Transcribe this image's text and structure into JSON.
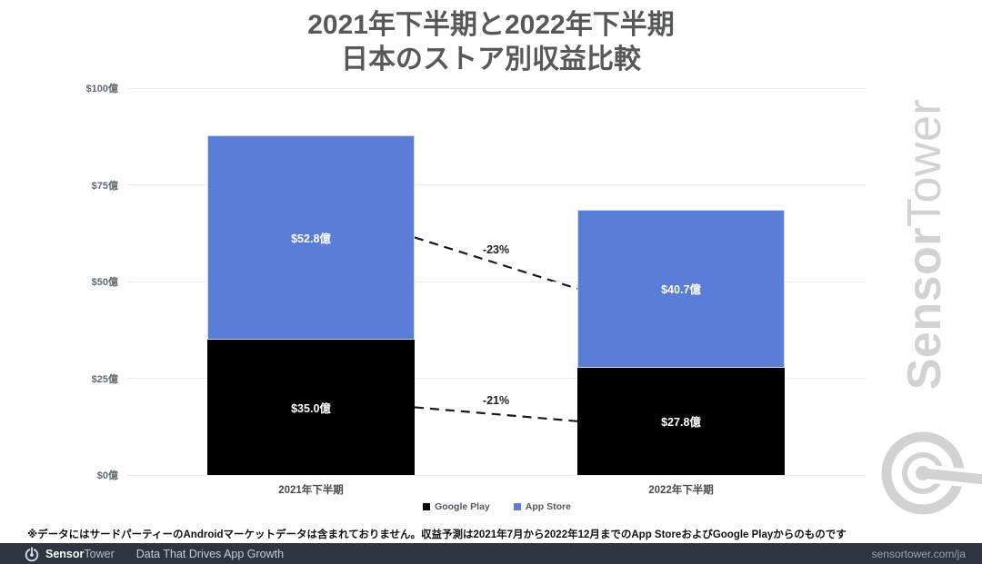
{
  "title": {
    "line1": "2021年下半期と2022年下半期",
    "line2": "日本のストア別収益比較"
  },
  "chart_data": {
    "type": "bar",
    "stacked": true,
    "categories": [
      "2021年下半期",
      "2022年下半期"
    ],
    "series": [
      {
        "name": "Google Play",
        "color": "#000000",
        "values": [
          35.0,
          27.8
        ],
        "labels": [
          "$35.0億",
          "$27.8億"
        ]
      },
      {
        "name": "App Store",
        "color": "#5a7ed8",
        "values": [
          52.8,
          40.7
        ],
        "labels": [
          "$52.8億",
          "$40.7億"
        ]
      }
    ],
    "y_ticks": [
      "$0億",
      "$25億",
      "$50億",
      "$75億",
      "$100億"
    ],
    "ylim": [
      0,
      100
    ],
    "grid": true,
    "legend_position": "bottom",
    "annotations": [
      {
        "label": "-23%",
        "series": "App Store"
      },
      {
        "label": "-21%",
        "series": "Google Play"
      }
    ]
  },
  "footnote": "※データにはサードパーティーのAndroidマーケットデータは含まれておりません。収益予測は2021年7月から2022年12月までのApp StoreおよびGoogle Playからのものです",
  "watermark": {
    "brand_bold": "Sensor",
    "brand_light": "Tower"
  },
  "footer_bar": {
    "brand_bold": "Sensor",
    "brand_light": "Tower",
    "tagline": "Data That Drives App Growth",
    "url": "sensortower.com/ja"
  },
  "colors": {
    "app_store_blue": "#5a7ed8",
    "google_play_black": "#000000",
    "footer_bg": "#2e3540",
    "watermark_gray": "#d2d2d2"
  }
}
